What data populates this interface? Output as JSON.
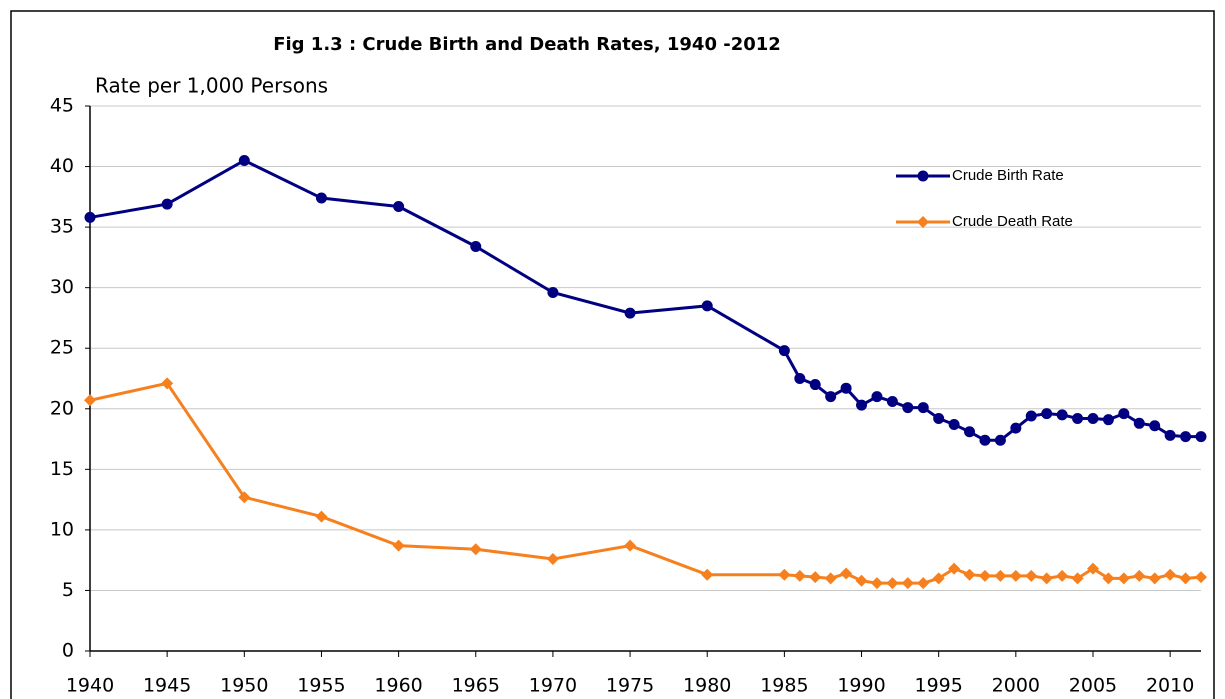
{
  "chart_data": {
    "type": "line",
    "title": "Fig 1.3 : Crude Birth and Death Rates, 1940 -2012",
    "y_label": "Rate per 1,000 Persons",
    "x": [
      1940,
      1945,
      1950,
      1955,
      1960,
      1965,
      1970,
      1975,
      1980,
      1985,
      1986,
      1987,
      1988,
      1989,
      1990,
      1991,
      1992,
      1993,
      1994,
      1995,
      1996,
      1997,
      1998,
      1999,
      2000,
      2001,
      2002,
      2003,
      2004,
      2005,
      2006,
      2007,
      2008,
      2009,
      2010,
      2011,
      2012
    ],
    "series": [
      {
        "name": "Crude Birth Rate",
        "color": "#000080",
        "marker": "circle",
        "values": [
          35.8,
          36.9,
          40.5,
          37.4,
          36.7,
          33.4,
          29.6,
          27.9,
          28.5,
          24.8,
          22.5,
          22.0,
          21.0,
          21.7,
          20.3,
          21.0,
          20.6,
          20.1,
          20.1,
          19.2,
          18.7,
          18.1,
          17.4,
          17.4,
          18.4,
          19.4,
          19.6,
          19.5,
          19.2,
          19.2,
          19.1,
          19.6,
          18.8,
          18.6,
          17.8,
          17.7,
          17.7
        ]
      },
      {
        "name": "Crude Death Rate",
        "color": "#f7801e",
        "marker": "diamond",
        "values": [
          20.7,
          22.1,
          12.7,
          11.1,
          8.7,
          8.4,
          7.6,
          8.7,
          6.3,
          6.3,
          6.2,
          6.1,
          6.0,
          6.4,
          5.8,
          5.6,
          5.6,
          5.6,
          5.6,
          6.0,
          6.8,
          6.3,
          6.2,
          6.2,
          6.2,
          6.2,
          6.0,
          6.2,
          6.0,
          6.8,
          6.0,
          6.0,
          6.2,
          6.0,
          6.3,
          6.0,
          6.1
        ]
      }
    ],
    "xlim": [
      1940,
      2012
    ],
    "xticks": [
      1940,
      1945,
      1950,
      1955,
      1960,
      1965,
      1970,
      1975,
      1980,
      1985,
      1990,
      1995,
      2000,
      2005,
      2010
    ],
    "ylim": [
      0,
      45
    ],
    "yticks": [
      0,
      5,
      10,
      15,
      20,
      25,
      30,
      35,
      40,
      45
    ],
    "grid": true,
    "legend": "upper right"
  }
}
